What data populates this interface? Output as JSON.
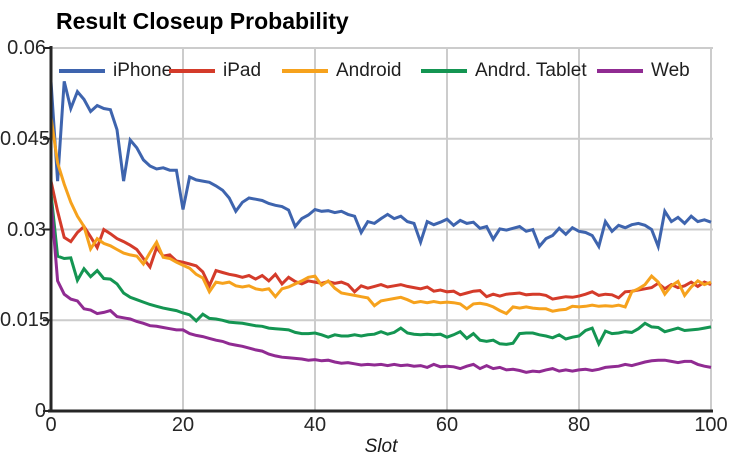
{
  "chart_data": {
    "type": "line",
    "title": "Result Closeup Probability",
    "xlabel": "Slot",
    "ylabel": "",
    "xlim": [
      0,
      100
    ],
    "ylim": [
      0,
      0.06
    ],
    "x_start": 0,
    "x_step": 1,
    "x_ticks": [
      0,
      20,
      40,
      60,
      80,
      100
    ],
    "y_ticks": [
      0,
      0.015,
      0.03,
      0.045,
      0.06
    ],
    "y_tick_labels": [
      "0",
      "0.015",
      "0.03",
      "0.045",
      "0.06"
    ],
    "grid": true,
    "legend_position": "top-inside",
    "colors": {
      "grid": "#cccccc",
      "axis": "#262626",
      "tick_text": "#262626"
    },
    "series": [
      {
        "name": "iPhone",
        "color": "#3e64ae",
        "values": [
          0.0545,
          0.038,
          0.0545,
          0.05,
          0.0528,
          0.0515,
          0.0495,
          0.0505,
          0.05,
          0.0498,
          0.0465,
          0.038,
          0.0448,
          0.0435,
          0.0415,
          0.0405,
          0.04,
          0.0402,
          0.0398,
          0.0398,
          0.0333,
          0.0387,
          0.0382,
          0.038,
          0.0378,
          0.0372,
          0.0365,
          0.0352,
          0.033,
          0.0345,
          0.0352,
          0.035,
          0.0348,
          0.0343,
          0.034,
          0.0338,
          0.0332,
          0.0305,
          0.0318,
          0.0324,
          0.0333,
          0.033,
          0.0331,
          0.0328,
          0.033,
          0.0325,
          0.0322,
          0.0295,
          0.0313,
          0.031,
          0.0318,
          0.0325,
          0.0318,
          0.0322,
          0.0313,
          0.031,
          0.0279,
          0.0313,
          0.0308,
          0.0312,
          0.0317,
          0.0307,
          0.0315,
          0.031,
          0.0312,
          0.0302,
          0.0305,
          0.0284,
          0.0301,
          0.0299,
          0.0302,
          0.0305,
          0.0297,
          0.03,
          0.0272,
          0.0285,
          0.029,
          0.0302,
          0.0292,
          0.0303,
          0.0297,
          0.0295,
          0.029,
          0.0272,
          0.0313,
          0.0297,
          0.0307,
          0.0303,
          0.0308,
          0.031,
          0.0307,
          0.03,
          0.0272,
          0.033,
          0.0313,
          0.032,
          0.031,
          0.0322,
          0.0313,
          0.0316,
          0.0312
        ]
      },
      {
        "name": "iPad",
        "color": "#d43b2a",
        "values": [
          0.038,
          0.033,
          0.0287,
          0.028,
          0.0295,
          0.0305,
          0.0288,
          0.027,
          0.03,
          0.0293,
          0.0285,
          0.028,
          0.0274,
          0.0267,
          0.0252,
          0.0238,
          0.027,
          0.0256,
          0.0258,
          0.0248,
          0.0246,
          0.0243,
          0.024,
          0.023,
          0.0207,
          0.0232,
          0.0229,
          0.0226,
          0.0224,
          0.0221,
          0.0224,
          0.0218,
          0.0224,
          0.0215,
          0.0226,
          0.021,
          0.0221,
          0.0214,
          0.021,
          0.0215,
          0.0213,
          0.0211,
          0.0214,
          0.0211,
          0.0213,
          0.0209,
          0.0197,
          0.0207,
          0.0203,
          0.0206,
          0.0209,
          0.0205,
          0.0207,
          0.0209,
          0.0206,
          0.0204,
          0.0202,
          0.0205,
          0.0198,
          0.02,
          0.0197,
          0.0198,
          0.0192,
          0.0195,
          0.0198,
          0.0199,
          0.0189,
          0.0193,
          0.019,
          0.0193,
          0.0194,
          0.0195,
          0.0192,
          0.0193,
          0.0193,
          0.0191,
          0.0185,
          0.0187,
          0.0189,
          0.0188,
          0.019,
          0.0193,
          0.0197,
          0.0191,
          0.0193,
          0.0192,
          0.0187,
          0.0197,
          0.0198,
          0.02,
          0.0202,
          0.0204,
          0.0211,
          0.0202,
          0.0209,
          0.0204,
          0.0207,
          0.0213,
          0.0206,
          0.0213,
          0.0209
        ]
      },
      {
        "name": "Android",
        "color": "#f6a21d",
        "values": [
          0.0485,
          0.041,
          0.0375,
          0.0345,
          0.0322,
          0.0305,
          0.0268,
          0.0285,
          0.0277,
          0.0273,
          0.0267,
          0.0261,
          0.0258,
          0.0256,
          0.0243,
          0.0262,
          0.0279,
          0.0254,
          0.0252,
          0.0246,
          0.0241,
          0.0236,
          0.0226,
          0.022,
          0.0197,
          0.0213,
          0.0211,
          0.0213,
          0.0207,
          0.0205,
          0.0207,
          0.0202,
          0.02,
          0.0202,
          0.0189,
          0.0202,
          0.0205,
          0.021,
          0.0215,
          0.0221,
          0.0223,
          0.0208,
          0.0215,
          0.0203,
          0.0195,
          0.0193,
          0.0191,
          0.0189,
          0.0187,
          0.0174,
          0.0182,
          0.0184,
          0.0186,
          0.0188,
          0.0184,
          0.0179,
          0.0181,
          0.0179,
          0.0181,
          0.0179,
          0.018,
          0.0179,
          0.0177,
          0.0169,
          0.0177,
          0.0178,
          0.0176,
          0.0172,
          0.0166,
          0.0161,
          0.0172,
          0.017,
          0.0172,
          0.017,
          0.0169,
          0.0169,
          0.0165,
          0.0167,
          0.0168,
          0.0173,
          0.0172,
          0.0173,
          0.0175,
          0.0173,
          0.0174,
          0.0173,
          0.0175,
          0.0172,
          0.0197,
          0.0202,
          0.0209,
          0.0223,
          0.0213,
          0.0193,
          0.0207,
          0.0214,
          0.0191,
          0.0205,
          0.0215,
          0.0209,
          0.0213
        ]
      },
      {
        "name": "Andrd. Tablet",
        "color": "#149552",
        "values": [
          0.036,
          0.0256,
          0.0252,
          0.0253,
          0.0216,
          0.0235,
          0.0222,
          0.0232,
          0.0219,
          0.0218,
          0.021,
          0.0195,
          0.0188,
          0.0184,
          0.018,
          0.0176,
          0.0173,
          0.017,
          0.0168,
          0.0166,
          0.0162,
          0.0159,
          0.0149,
          0.016,
          0.0153,
          0.0152,
          0.015,
          0.0147,
          0.0146,
          0.0145,
          0.0143,
          0.0141,
          0.014,
          0.0137,
          0.0136,
          0.0135,
          0.0134,
          0.013,
          0.0128,
          0.0128,
          0.0129,
          0.0126,
          0.0122,
          0.0126,
          0.0124,
          0.0124,
          0.0126,
          0.0124,
          0.0126,
          0.0127,
          0.0131,
          0.0127,
          0.013,
          0.0137,
          0.0129,
          0.0127,
          0.0126,
          0.0127,
          0.0126,
          0.0127,
          0.0122,
          0.0126,
          0.0131,
          0.012,
          0.0128,
          0.0117,
          0.0115,
          0.0117,
          0.0111,
          0.011,
          0.0112,
          0.0128,
          0.0129,
          0.0129,
          0.0126,
          0.0124,
          0.0121,
          0.0126,
          0.0119,
          0.0122,
          0.0124,
          0.0133,
          0.0137,
          0.0111,
          0.0132,
          0.0128,
          0.0129,
          0.0131,
          0.013,
          0.0136,
          0.0145,
          0.0139,
          0.0138,
          0.0131,
          0.0134,
          0.0137,
          0.0133,
          0.0134,
          0.0135,
          0.0137,
          0.0139
        ]
      },
      {
        "name": "Web",
        "color": "#902b92",
        "values": [
          0.0348,
          0.0215,
          0.0193,
          0.0185,
          0.0182,
          0.0169,
          0.0167,
          0.0161,
          0.0163,
          0.0166,
          0.0156,
          0.0154,
          0.0152,
          0.0148,
          0.0145,
          0.0141,
          0.014,
          0.0138,
          0.0136,
          0.0134,
          0.0134,
          0.0128,
          0.0125,
          0.0123,
          0.012,
          0.0117,
          0.0115,
          0.0111,
          0.0109,
          0.0107,
          0.0104,
          0.0101,
          0.0099,
          0.0094,
          0.0091,
          0.0089,
          0.0088,
          0.0087,
          0.0086,
          0.0084,
          0.0085,
          0.0083,
          0.0084,
          0.0081,
          0.0079,
          0.008,
          0.0078,
          0.0076,
          0.0077,
          0.0076,
          0.0077,
          0.0075,
          0.0077,
          0.0075,
          0.0076,
          0.0074,
          0.0075,
          0.0072,
          0.0077,
          0.0073,
          0.0074,
          0.0073,
          0.007,
          0.0074,
          0.0077,
          0.007,
          0.0075,
          0.007,
          0.0072,
          0.0068,
          0.0069,
          0.0067,
          0.0064,
          0.0066,
          0.0065,
          0.0068,
          0.007,
          0.0066,
          0.0068,
          0.0066,
          0.0068,
          0.0069,
          0.0067,
          0.0069,
          0.0072,
          0.0073,
          0.0074,
          0.0077,
          0.0075,
          0.0078,
          0.0081,
          0.0083,
          0.0084,
          0.0084,
          0.0082,
          0.008,
          0.0082,
          0.0082,
          0.0077,
          0.0074,
          0.0072
        ]
      }
    ]
  }
}
